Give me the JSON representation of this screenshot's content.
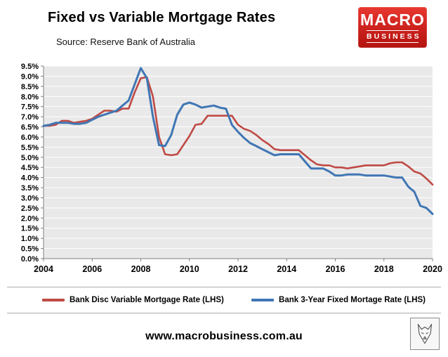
{
  "header": {
    "title": "Fixed vs Variable Mortgage Rates",
    "source": "Source: Reserve Bank of Australia",
    "logo": {
      "line1": "MACRO",
      "line2": "BUSINESS"
    }
  },
  "chart_data": {
    "type": "line",
    "title": "Fixed vs Variable Mortgage Rates",
    "xlabel": "",
    "ylabel": "",
    "ylim": [
      0,
      9.5
    ],
    "ytick_step": 0.5,
    "ytick_suffix": "%",
    "xticks": [
      2004,
      2006,
      2008,
      2010,
      2012,
      2014,
      2016,
      2018,
      2020
    ],
    "grid": true,
    "legend_position": "bottom",
    "plot_bg": "#e9e9e9",
    "x": [
      2004,
      2004.25,
      2004.5,
      2004.75,
      2005,
      2005.25,
      2005.5,
      2005.75,
      2006,
      2006.25,
      2006.5,
      2006.75,
      2007,
      2007.25,
      2007.5,
      2007.75,
      2008,
      2008.25,
      2008.5,
      2008.75,
      2009,
      2009.25,
      2009.5,
      2009.75,
      2010,
      2010.25,
      2010.5,
      2010.75,
      2011,
      2011.25,
      2011.5,
      2011.75,
      2012,
      2012.25,
      2012.5,
      2012.75,
      2013,
      2013.25,
      2013.5,
      2013.75,
      2014,
      2014.25,
      2014.5,
      2014.75,
      2015,
      2015.25,
      2015.5,
      2015.75,
      2016,
      2016.25,
      2016.5,
      2016.75,
      2017,
      2017.25,
      2017.5,
      2017.75,
      2018,
      2018.25,
      2018.5,
      2018.75,
      2019,
      2019.25,
      2019.5,
      2019.75,
      2020
    ],
    "series": [
      {
        "name": "Bank Disc Variable Mortgage Rate (LHS)",
        "color": "#bf4a45",
        "width": 2.6,
        "values": [
          6.55,
          6.55,
          6.6,
          6.8,
          6.8,
          6.7,
          6.75,
          6.8,
          6.9,
          7.1,
          7.3,
          7.3,
          7.25,
          7.4,
          7.4,
          8.2,
          8.9,
          8.95,
          8.0,
          6.0,
          5.15,
          5.1,
          5.15,
          5.6,
          6.05,
          6.6,
          6.65,
          7.05,
          7.05,
          7.05,
          7.05,
          7.05,
          6.6,
          6.4,
          6.3,
          6.1,
          5.85,
          5.65,
          5.4,
          5.35,
          5.35,
          5.35,
          5.35,
          5.1,
          4.85,
          4.65,
          4.6,
          4.6,
          4.5,
          4.5,
          4.45,
          4.5,
          4.55,
          4.6,
          4.6,
          4.6,
          4.6,
          4.7,
          4.75,
          4.75,
          4.55,
          4.3,
          4.2,
          3.95,
          3.65
        ]
      },
      {
        "name": "Bank 3-Year Fixed Mortage Rate (LHS)",
        "color": "#4076b4",
        "width": 3,
        "values": [
          6.55,
          6.6,
          6.7,
          6.7,
          6.7,
          6.65,
          6.65,
          6.7,
          6.85,
          7.0,
          7.1,
          7.2,
          7.3,
          7.55,
          7.8,
          8.6,
          9.4,
          8.9,
          7.0,
          5.6,
          5.55,
          6.1,
          7.1,
          7.6,
          7.7,
          7.6,
          7.45,
          7.5,
          7.55,
          7.45,
          7.4,
          6.6,
          6.25,
          5.95,
          5.7,
          5.55,
          5.4,
          5.25,
          5.1,
          5.15,
          5.15,
          5.15,
          5.15,
          4.8,
          4.45,
          4.45,
          4.45,
          4.3,
          4.1,
          4.1,
          4.15,
          4.15,
          4.15,
          4.1,
          4.1,
          4.1,
          4.1,
          4.05,
          4.0,
          4.0,
          3.55,
          3.3,
          2.6,
          2.5,
          2.2
        ]
      }
    ]
  },
  "footer": {
    "url": "www.macrobusiness.com.au"
  }
}
